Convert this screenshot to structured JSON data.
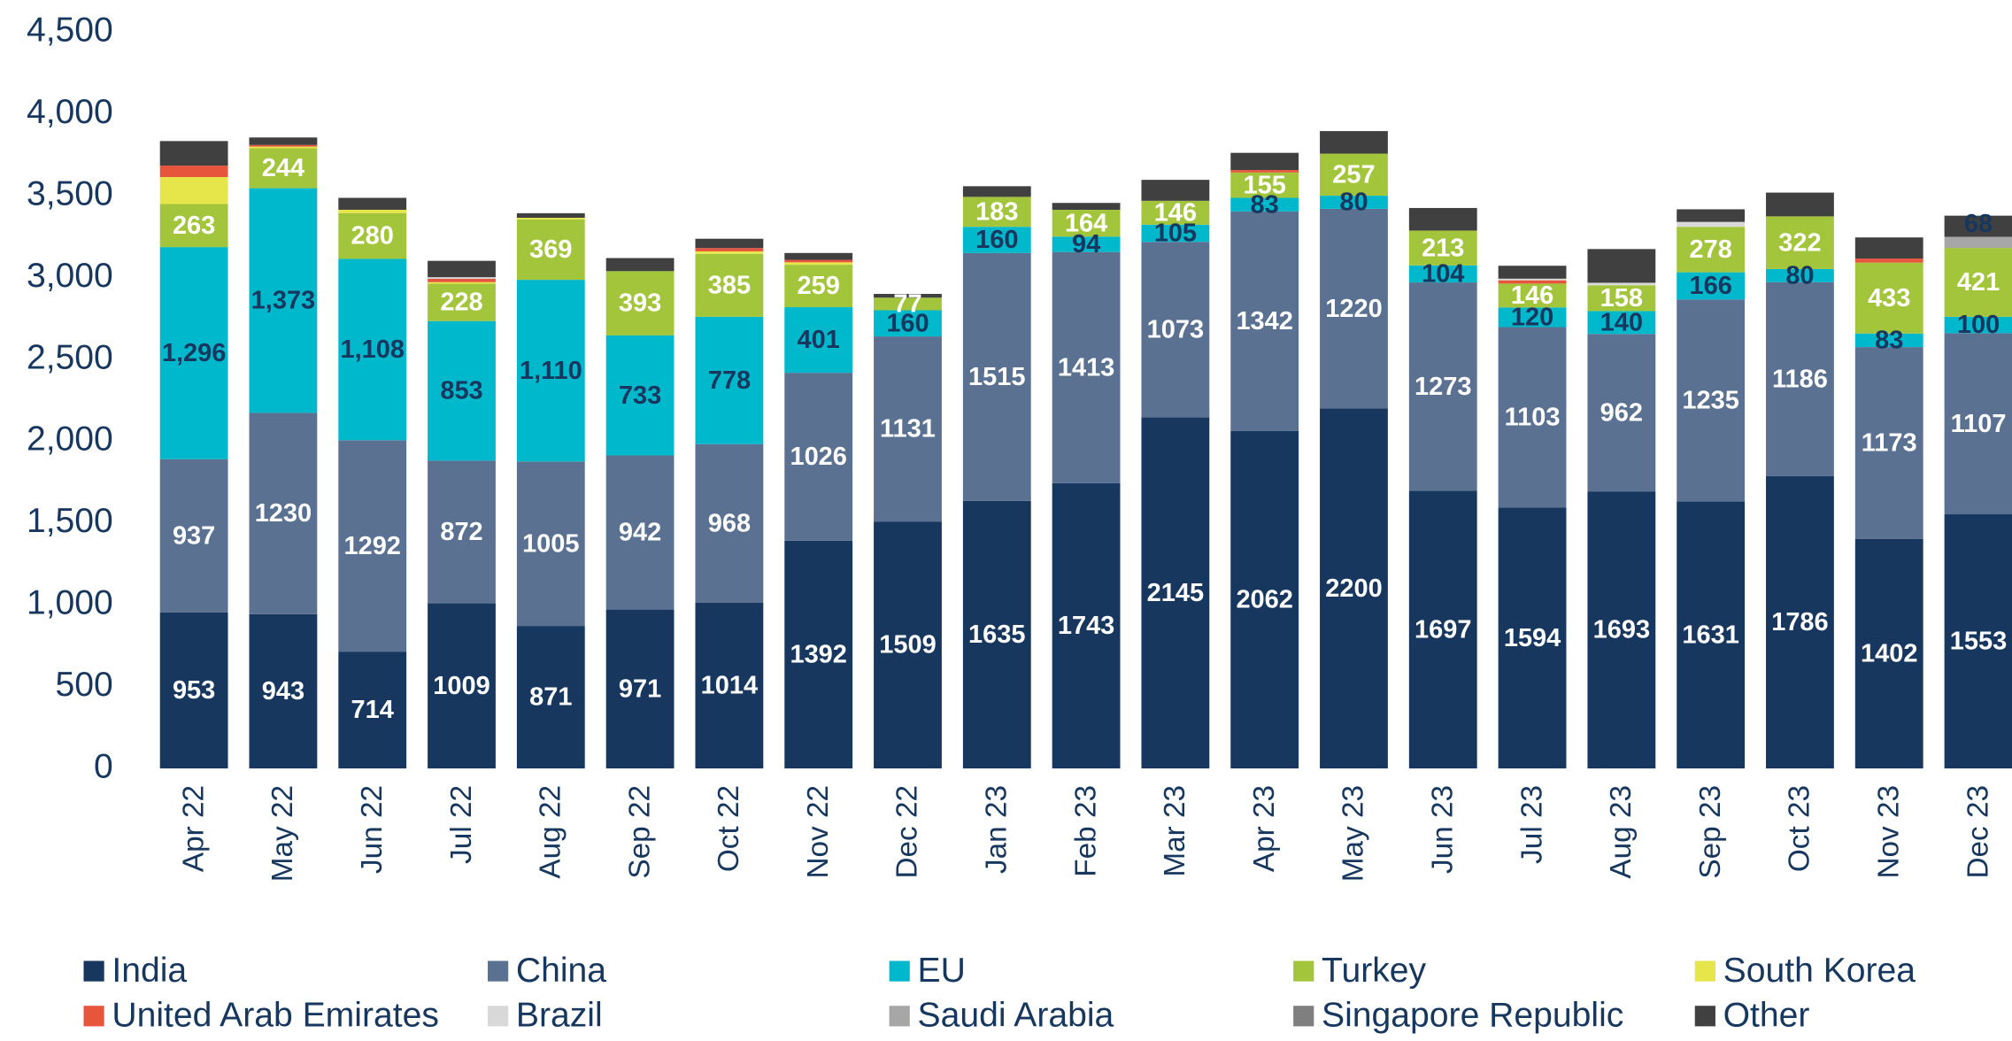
{
  "chart_data": {
    "type": "stacked_bar",
    "categories": [
      "Apr 22",
      "May 22",
      "Jun 22",
      "Jul 22",
      "Aug 22",
      "Sep 22",
      "Oct 22",
      "Nov 22",
      "Dec 22",
      "Jan 23",
      "Feb 23",
      "Mar 23",
      "Apr 23",
      "May 23",
      "Jun 23",
      "Jul 23",
      "Aug 23",
      "Sep 23",
      "Oct 23",
      "Nov 23",
      "Dec 23"
    ],
    "ylim": [
      0,
      4500
    ],
    "yticks": [
      0,
      500,
      {
        "value": 1000,
        "label": "1,000"
      },
      {
        "value": 1500,
        "label": "1,500"
      },
      {
        "value": 2000,
        "label": "2,000"
      },
      {
        "value": 2500,
        "label": "2,500"
      },
      {
        "value": 3000,
        "label": "3,000"
      },
      {
        "value": 3500,
        "label": "3,500"
      },
      {
        "value": 4000,
        "label": "4,000"
      },
      {
        "value": 4500,
        "label": "4,500"
      }
    ],
    "series": [
      {
        "name": "India",
        "color": "#17375e",
        "label_color": "#ffffff",
        "values": [
          953,
          943,
          714,
          1009,
          871,
          971,
          1014,
          1392,
          1509,
          1635,
          1743,
          2145,
          2062,
          2200,
          1697,
          1594,
          1693,
          1631,
          1786,
          1402,
          1553
        ],
        "value_labels": [
          "953",
          "943",
          "714",
          "1009",
          "871",
          "971",
          "1014",
          "1392",
          "1509",
          "1635",
          "1743",
          "2145",
          "2062",
          "2200",
          "1697",
          "1594",
          "1693",
          "1631",
          "1786",
          "1402",
          "1553"
        ]
      },
      {
        "name": "China",
        "color": "#5a7191",
        "label_color": "#ffffff",
        "values": [
          937,
          1230,
          1292,
          872,
          1005,
          942,
          968,
          1026,
          1131,
          1515,
          1413,
          1073,
          1342,
          1220,
          1273,
          1103,
          962,
          1235,
          1186,
          1173,
          1107
        ],
        "value_labels": [
          "937",
          "1230",
          "1292",
          "872",
          "1005",
          "942",
          "968",
          "1026",
          "1131",
          "1515",
          "1413",
          "1073",
          "1342",
          "1220",
          "1273",
          "1103",
          "962",
          "1235",
          "1186",
          "1173",
          "1107"
        ]
      },
      {
        "name": "EU",
        "color": "#00b8cc",
        "label_color": "#17375e",
        "values": [
          1296,
          1373,
          1108,
          853,
          1110,
          733,
          778,
          401,
          160,
          160,
          94,
          105,
          83,
          80,
          104,
          120,
          140,
          166,
          80,
          83,
          100
        ],
        "value_labels": [
          "1,296",
          "1,373",
          "1,108",
          "853",
          "1,110",
          "733",
          "778",
          "401",
          "160",
          "160",
          "94",
          "105",
          "83",
          "80",
          "104",
          "120",
          "140",
          "166",
          "80",
          "83",
          "100"
        ]
      },
      {
        "name": "Turkey",
        "color": "#a2c53b",
        "label_color": "#ffffff",
        "values": [
          263,
          244,
          280,
          228,
          369,
          393,
          385,
          259,
          77,
          183,
          164,
          146,
          155,
          257,
          213,
          146,
          158,
          278,
          322,
          433,
          421
        ],
        "value_labels": [
          "263",
          "244",
          "280",
          "228",
          "369",
          "393",
          "385",
          "259",
          "77",
          "183",
          "164",
          "146",
          "155",
          "257",
          "213",
          "146",
          "158",
          "278",
          "322",
          "433",
          "421"
        ]
      },
      {
        "name": "South Korea",
        "color": "#e6e64a",
        "values": [
          165,
          10,
          20,
          10,
          10,
          0,
          15,
          15,
          0,
          0,
          0,
          0,
          0,
          0,
          0,
          0,
          0,
          0,
          0,
          0,
          0
        ]
      },
      {
        "name": "United Arab Emirates",
        "color": "#e8553d",
        "values": [
          70,
          10,
          0,
          20,
          0,
          0,
          20,
          15,
          0,
          0,
          0,
          0,
          15,
          0,
          0,
          20,
          0,
          0,
          0,
          25,
          0
        ]
      },
      {
        "name": "Brazil",
        "color": "#d9d9d9",
        "values": [
          0,
          0,
          0,
          10,
          0,
          0,
          0,
          0,
          0,
          0,
          0,
          0,
          0,
          0,
          0,
          10,
          15,
          30,
          0,
          0,
          0
        ]
      },
      {
        "name": "Saudi Arabia",
        "color": "#a6a6a6",
        "label_color": "#17375e",
        "values": [
          0,
          0,
          0,
          0,
          0,
          0,
          0,
          0,
          0,
          0,
          0,
          0,
          0,
          0,
          0,
          0,
          0,
          0,
          0,
          0,
          68
        ],
        "value_labels": [
          null,
          null,
          null,
          null,
          null,
          null,
          null,
          null,
          null,
          null,
          null,
          null,
          null,
          null,
          null,
          null,
          null,
          null,
          null,
          null,
          "68"
        ]
      },
      {
        "name": "Singapore Republic",
        "color": "#7f7f7f",
        "values": [
          0,
          0,
          0,
          0,
          0,
          0,
          0,
          0,
          0,
          0,
          0,
          0,
          0,
          0,
          0,
          0,
          0,
          0,
          0,
          0,
          0
        ]
      },
      {
        "name": "Other",
        "color": "#404040",
        "values": [
          150,
          46,
          73,
          100,
          28,
          80,
          57,
          42,
          23,
          65,
          42,
          128,
          105,
          138,
          138,
          79,
          206,
          77,
          145,
          129,
          129
        ]
      }
    ]
  }
}
